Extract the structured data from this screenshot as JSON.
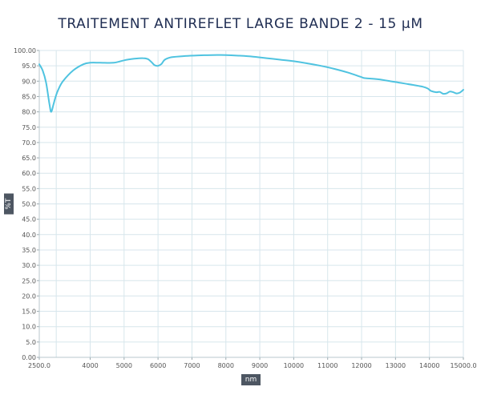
{
  "chart_data": {
    "type": "line",
    "title": "TRAITEMENT ANTIREFLET LARGE BANDE 2 - 15 µM",
    "xlabel": "nm",
    "ylabel": "%T",
    "xlim": [
      2500,
      15000
    ],
    "ylim": [
      0,
      100
    ],
    "grid": true,
    "line_color": "#4fc3e0",
    "grid_color": "#d7e6ec",
    "label_box_color": "#4d5662",
    "title_color": "#1f2d52",
    "x_ticks": [
      {
        "value": 2500,
        "label": "2500.0"
      },
      {
        "value": 4000,
        "label": "4000"
      },
      {
        "value": 5000,
        "label": "5000"
      },
      {
        "value": 6000,
        "label": "6000"
      },
      {
        "value": 7000,
        "label": "7000"
      },
      {
        "value": 8000,
        "label": "8000"
      },
      {
        "value": 9000,
        "label": "9000"
      },
      {
        "value": 10000,
        "label": "10000"
      },
      {
        "value": 11000,
        "label": "11000"
      },
      {
        "value": 12000,
        "label": "12000"
      },
      {
        "value": 13000,
        "label": "13000"
      },
      {
        "value": 14000,
        "label": "14000"
      },
      {
        "value": 15000,
        "label": "15000.0"
      }
    ],
    "y_ticks": [
      {
        "value": 0,
        "label": "0.00"
      },
      {
        "value": 5,
        "label": "5.0"
      },
      {
        "value": 10,
        "label": "10.0"
      },
      {
        "value": 15,
        "label": "15.0"
      },
      {
        "value": 20,
        "label": "20.0"
      },
      {
        "value": 25,
        "label": "25.0"
      },
      {
        "value": 30,
        "label": "30.0"
      },
      {
        "value": 35,
        "label": "35.0"
      },
      {
        "value": 40,
        "label": "40.0"
      },
      {
        "value": 45,
        "label": "45.0"
      },
      {
        "value": 50,
        "label": "50.0"
      },
      {
        "value": 55,
        "label": "55.0"
      },
      {
        "value": 60,
        "label": "60.0"
      },
      {
        "value": 65,
        "label": "65.0"
      },
      {
        "value": 70,
        "label": "70.0"
      },
      {
        "value": 75,
        "label": "75.0"
      },
      {
        "value": 80,
        "label": "80.0"
      },
      {
        "value": 85,
        "label": "85.0"
      },
      {
        "value": 90,
        "label": "90.0"
      },
      {
        "value": 95,
        "label": "95.0"
      },
      {
        "value": 100,
        "label": "100.00"
      }
    ],
    "extra_x_gridlines": [
      3000
    ],
    "series": [
      {
        "x": [
          2500,
          2600,
          2700,
          2800,
          2850,
          2920,
          2970,
          3050,
          3200,
          3500,
          3800,
          4000,
          4300,
          4700,
          5000,
          5300,
          5550,
          5700,
          5800,
          5900,
          6000,
          6100,
          6200,
          6400,
          6800,
          7200,
          7600,
          8000,
          8400,
          8800,
          9200,
          9600,
          10000,
          10400,
          10800,
          11200,
          11600,
          12000,
          12100,
          12500,
          13000,
          13500,
          13800,
          13950,
          14050,
          14200,
          14300,
          14400,
          14500,
          14600,
          14700,
          14800,
          14900,
          15000
        ],
        "y": [
          95.5,
          93.5,
          89.5,
          82.5,
          80.0,
          82.5,
          84.5,
          87.0,
          90.0,
          93.5,
          95.5,
          96.0,
          96.0,
          96.0,
          96.8,
          97.3,
          97.5,
          97.2,
          96.3,
          95.2,
          95.0,
          95.6,
          97.0,
          97.8,
          98.2,
          98.4,
          98.5,
          98.5,
          98.3,
          98.0,
          97.5,
          97.0,
          96.5,
          95.8,
          95.0,
          94.0,
          92.8,
          91.3,
          91.0,
          90.6,
          89.7,
          88.8,
          88.2,
          87.6,
          86.8,
          86.4,
          86.5,
          85.9,
          86.0,
          86.6,
          86.4,
          86.0,
          86.3,
          87.2
        ]
      }
    ]
  }
}
